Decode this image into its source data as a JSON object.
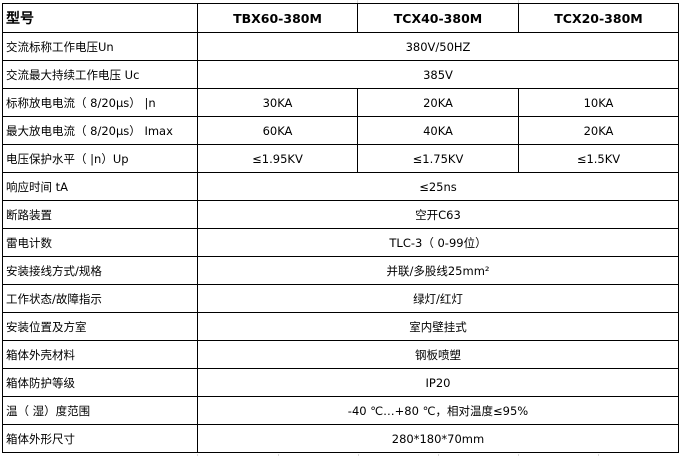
{
  "header": {
    "label": "型号",
    "models": [
      "TBX60-380M",
      "TCX40-380M",
      "TCX20-380M"
    ]
  },
  "rows": [
    {
      "label": "交流标称工作电压Un",
      "value": "380V/50HZ"
    },
    {
      "label": "交流最大持续工作电压 Uc",
      "value": "385V"
    },
    {
      "label": "标称放电电流（ 8/20μs） |n",
      "values": [
        "30KA",
        "20KA",
        "10KA"
      ]
    },
    {
      "label": "最大放电电流（ 8/20μs） Imax",
      "values": [
        "60KA",
        "40KA",
        "20KA"
      ]
    },
    {
      "label": "电压保护水平（ |n）Up",
      "values": [
        "≤1.95KV",
        "≤1.75KV",
        "≤1.5KV"
      ]
    },
    {
      "label": "响应时间 tA",
      "value": "≤25ns"
    },
    {
      "label": "断路装置",
      "value": "空开C63"
    },
    {
      "label": "雷电计数",
      "value": "TLC-3（ 0-99位）"
    },
    {
      "label": "安装接线方式/规格",
      "value": "并联/多股线25mm²"
    },
    {
      "label": "工作状态/故障指示",
      "value": "绿灯/红灯"
    },
    {
      "label": "安装位置及方室",
      "value": "室内壁挂式"
    },
    {
      "label": "箱体外壳材料",
      "value": "钢板喷塑"
    },
    {
      "label": "箱体防护等级",
      "value": "IP20"
    },
    {
      "label": "温（ 湿）度范围",
      "value": "-40 ℃…+80 ℃，相对温度≤95%"
    },
    {
      "label": "箱体外形尺寸",
      "value": "280*180*70mm"
    }
  ]
}
